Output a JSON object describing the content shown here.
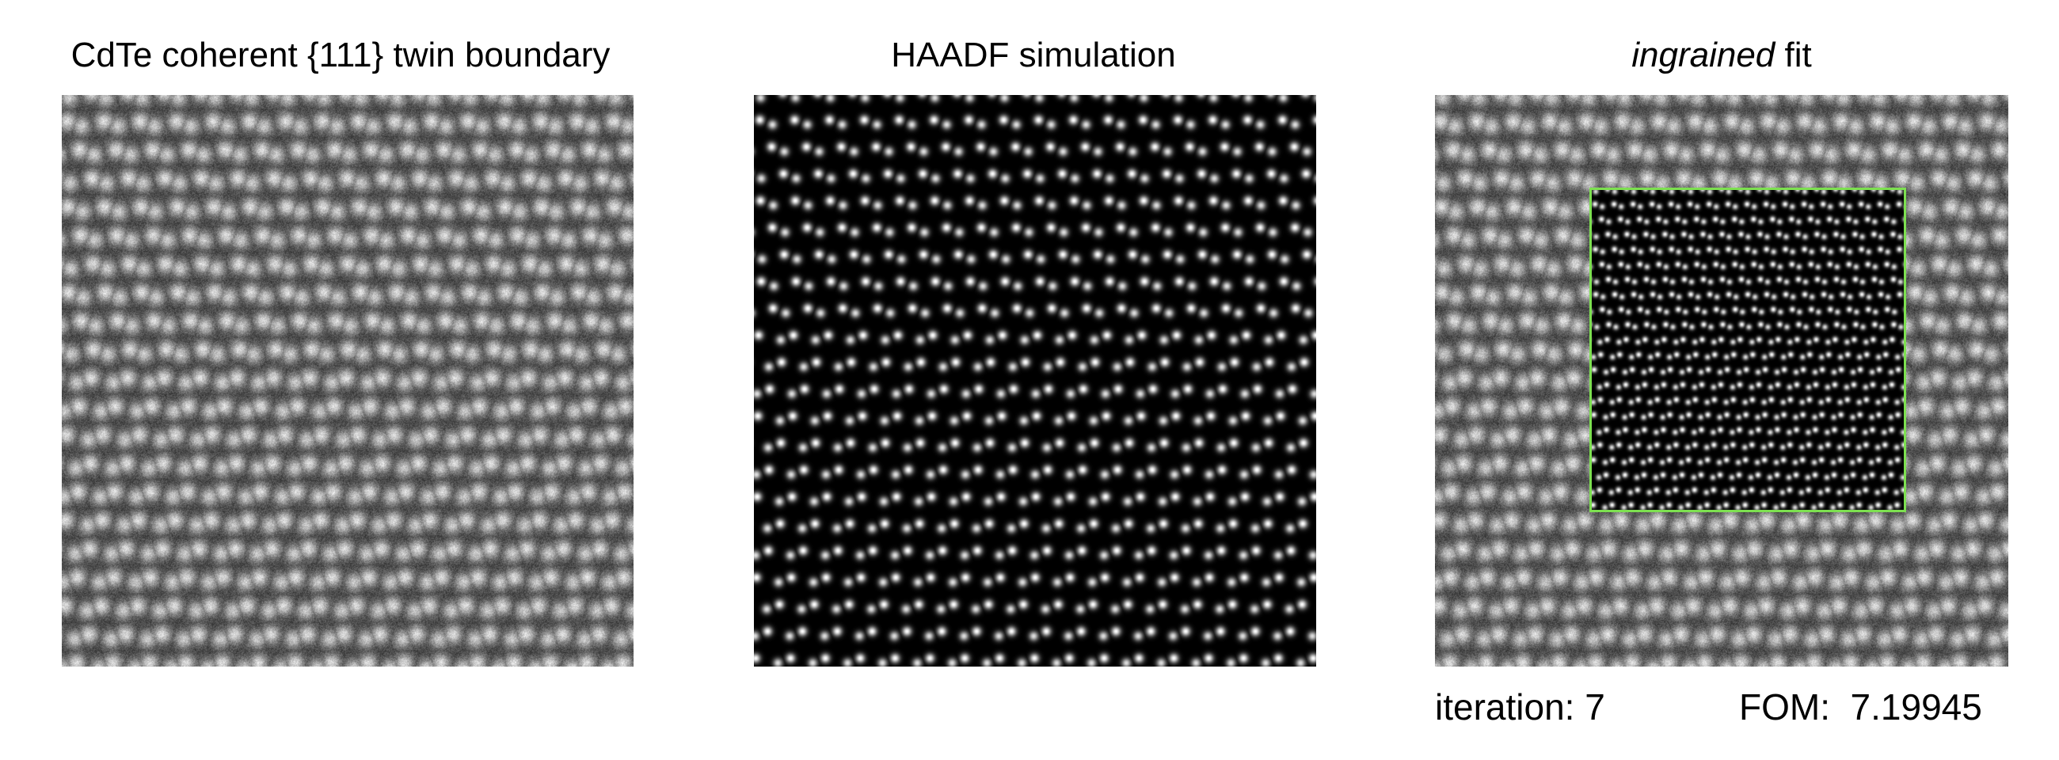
{
  "panels": {
    "experiment": {
      "title": "CdTe coherent {111} twin boundary"
    },
    "simulation": {
      "title": "HAADF simulation"
    },
    "fit": {
      "title_italic": "ingrained",
      "title_rest": " fit",
      "roi_color": "#7de050"
    }
  },
  "status": {
    "iteration_label": "iteration:",
    "iteration_value": "7",
    "fom_label": "FOM:",
    "fom_value": "7.19945"
  }
}
